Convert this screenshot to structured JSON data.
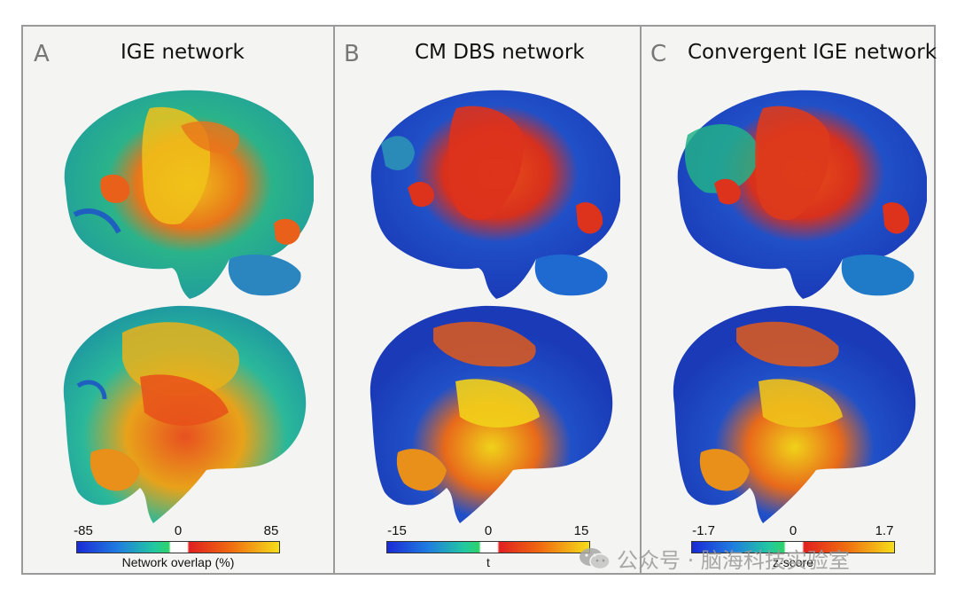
{
  "panels": [
    {
      "letter": "A",
      "title": "IGE network",
      "colorbar": {
        "min": "-85",
        "mid": "0",
        "max": "85",
        "label": "Network overlap (%)"
      }
    },
    {
      "letter": "B",
      "title": "CM DBS network",
      "colorbar": {
        "min": "-15",
        "mid": "0",
        "max": "15",
        "label": "t"
      }
    },
    {
      "letter": "C",
      "title": "Convergent IGE network",
      "colorbar": {
        "min": "-1.7",
        "mid": "0",
        "max": "1.7",
        "label": "z-score"
      }
    }
  ],
  "watermark": "公众号 · 脑海科技实验室",
  "colors": {
    "blue": "#1f3fc8",
    "cyan": "#20b4b4",
    "green": "#2ecf6a",
    "red": "#e0301c",
    "orange": "#f08a10",
    "yellow": "#f2e21a"
  }
}
